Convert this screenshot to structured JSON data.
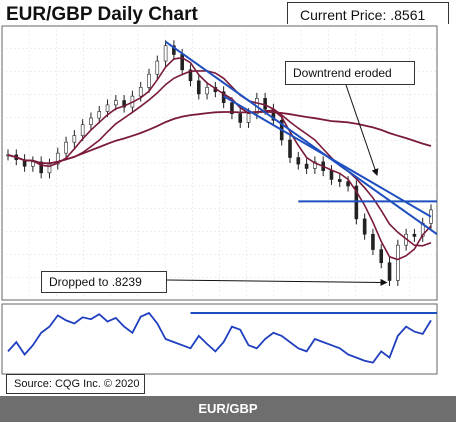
{
  "title": "EUR/GBP Daily Chart",
  "current_price_label": "Current Price: .8561",
  "source": "Source: CQG Inc. © 2020",
  "footer": "EUR/GBP",
  "annotations": {
    "downtrend": "Downtrend eroded",
    "dropped": "Dropped to .8239"
  },
  "colors": {
    "trendline": "#1f4fbf",
    "moving_average": "#7a1a3a",
    "candle": "#222222",
    "indicator": "#1f3fbf",
    "footer_bar": "#6e6e6e"
  },
  "chart_data": [
    {
      "type": "line",
      "title": "EUR/GBP Daily Chart",
      "series": [
        {
          "values": [
            0.8812,
            0.879,
            0.876,
            0.878,
            0.873,
            0.877,
            0.882,
            0.887,
            0.89,
            0.895,
            0.898,
            0.901,
            0.904,
            0.906,
            0.903,
            0.908,
            0.912,
            0.918,
            0.924,
            0.931,
            0.927,
            0.92,
            0.915,
            0.909,
            0.912,
            0.91,
            0.905,
            0.9,
            0.896,
            0.9,
            0.907,
            0.902,
            0.897,
            0.888,
            0.88,
            0.877,
            0.875,
            0.878,
            0.874,
            0.87,
            0.869,
            0.867,
            0.852,
            0.845,
            0.838,
            0.832,
            0.8239,
            0.84,
            0.845,
            0.844,
            0.85,
            0.8561
          ]
        }
      ],
      "annotations": [
        "Downtrend eroded",
        "Dropped to .8239"
      ]
    },
    {
      "type": "line",
      "series": [
        {
          "values": [
            30,
            45,
            25,
            40,
            60,
            70,
            88,
            80,
            75,
            85,
            82,
            90,
            78,
            84,
            70,
            60,
            86,
            92,
            75,
            50,
            45,
            40,
            35,
            55,
            42,
            30,
            45,
            70,
            65,
            40,
            35,
            50,
            60,
            55,
            45,
            35,
            30,
            50,
            45,
            40,
            35,
            25,
            20,
            15,
            12,
            30,
            20,
            55,
            70,
            62,
            58,
            80
          ]
        }
      ]
    }
  ]
}
